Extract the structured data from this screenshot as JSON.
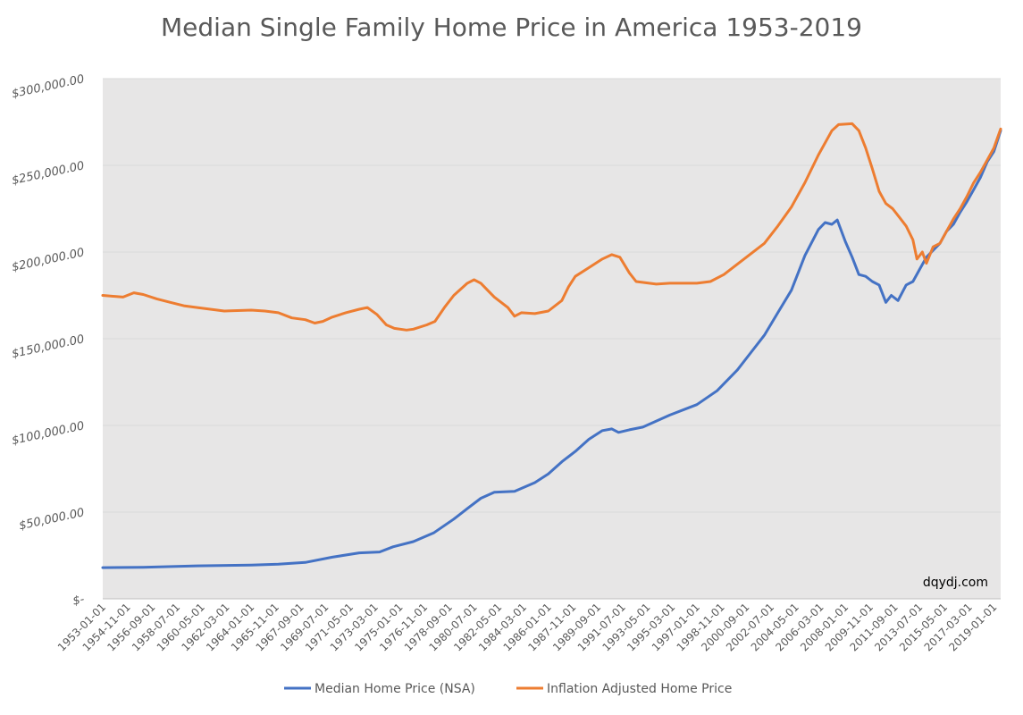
{
  "chart_data": {
    "type": "line",
    "title": "Median Single Family Home Price in America 1953-2019",
    "xlabel": "",
    "ylabel": "",
    "ylim": [
      0,
      300000
    ],
    "y_ticks": [
      0,
      50000,
      100000,
      150000,
      200000,
      250000,
      300000
    ],
    "y_tick_labels": [
      "$-",
      "$50,000.00",
      "$100,000.00",
      "$150,000.00",
      "$200,000.00",
      "$250,000.00",
      "$300,000.00"
    ],
    "x_range": [
      1953.0,
      2019.5
    ],
    "x_tick_labels": [
      "1953-01-01",
      "1954-11-01",
      "1956-09-01",
      "1958-07-01",
      "1960-05-01",
      "1962-03-01",
      "1964-01-01",
      "1965-11-01",
      "1967-09-01",
      "1969-07-01",
      "1971-05-01",
      "1973-03-01",
      "1975-01-01",
      "1976-11-01",
      "1978-09-01",
      "1980-07-01",
      "1982-05-01",
      "1984-03-01",
      "1986-01-01",
      "1987-11-01",
      "1989-09-01",
      "1991-07-01",
      "1993-05-01",
      "1995-03-01",
      "1997-01-01",
      "1998-11-01",
      "2000-09-01",
      "2002-07-01",
      "2004-05-01",
      "2006-03-01",
      "2008-01-01",
      "2009-11-01",
      "2011-09-01",
      "2013-07-01",
      "2015-05-01",
      "2017-03-01",
      "2019-01-01"
    ],
    "grid": true,
    "legend_position": "bottom",
    "annotation": "dqydj.com",
    "series": [
      {
        "name": "Median Home Price (NSA)",
        "color": "#4472C4",
        "points": [
          [
            1953.0,
            18000
          ],
          [
            1956.0,
            18200
          ],
          [
            1960.0,
            19000
          ],
          [
            1964.0,
            19500
          ],
          [
            1966.0,
            20000
          ],
          [
            1968.0,
            21000
          ],
          [
            1970.0,
            24000
          ],
          [
            1972.0,
            26500
          ],
          [
            1973.5,
            27000
          ],
          [
            1974.5,
            30000
          ],
          [
            1976.0,
            33000
          ],
          [
            1977.5,
            38000
          ],
          [
            1979.0,
            46000
          ],
          [
            1980.0,
            52000
          ],
          [
            1981.0,
            58000
          ],
          [
            1982.0,
            61500
          ],
          [
            1983.5,
            62000
          ],
          [
            1985.0,
            67000
          ],
          [
            1986.0,
            72000
          ],
          [
            1987.0,
            79000
          ],
          [
            1988.0,
            85000
          ],
          [
            1989.0,
            92000
          ],
          [
            1990.0,
            97000
          ],
          [
            1990.7,
            98000
          ],
          [
            1991.2,
            96000
          ],
          [
            1992.0,
            97500
          ],
          [
            1993.0,
            99000
          ],
          [
            1995.0,
            106000
          ],
          [
            1997.0,
            112000
          ],
          [
            1998.5,
            120000
          ],
          [
            2000.0,
            132000
          ],
          [
            2001.0,
            142000
          ],
          [
            2002.0,
            152000
          ],
          [
            2003.0,
            165000
          ],
          [
            2004.0,
            178000
          ],
          [
            2005.0,
            198000
          ],
          [
            2006.0,
            213000
          ],
          [
            2006.5,
            217000
          ],
          [
            2007.0,
            216000
          ],
          [
            2007.4,
            218500
          ],
          [
            2008.0,
            206000
          ],
          [
            2008.5,
            197000
          ],
          [
            2009.0,
            187000
          ],
          [
            2009.5,
            186000
          ],
          [
            2010.0,
            183000
          ],
          [
            2010.5,
            181000
          ],
          [
            2011.0,
            171000
          ],
          [
            2011.4,
            175000
          ],
          [
            2011.9,
            172000
          ],
          [
            2012.5,
            181000
          ],
          [
            2013.0,
            183000
          ],
          [
            2013.5,
            190000
          ],
          [
            2014.0,
            197000
          ],
          [
            2014.5,
            201000
          ],
          [
            2015.0,
            205000
          ],
          [
            2015.5,
            212000
          ],
          [
            2016.0,
            216000
          ],
          [
            2016.5,
            223000
          ],
          [
            2017.0,
            229000
          ],
          [
            2017.5,
            236000
          ],
          [
            2018.0,
            243000
          ],
          [
            2018.5,
            252000
          ],
          [
            2019.0,
            258000
          ],
          [
            2019.5,
            270000
          ]
        ]
      },
      {
        "name": "Inflation Adjusted Home Price",
        "color": "#ED7D31",
        "points": [
          [
            1953.0,
            175000
          ],
          [
            1954.5,
            174000
          ],
          [
            1955.3,
            176500
          ],
          [
            1956.0,
            175500
          ],
          [
            1957.0,
            173000
          ],
          [
            1958.0,
            171000
          ],
          [
            1959.0,
            169000
          ],
          [
            1960.0,
            168000
          ],
          [
            1962.0,
            166000
          ],
          [
            1964.0,
            166500
          ],
          [
            1965.0,
            166000
          ],
          [
            1966.0,
            165000
          ],
          [
            1967.0,
            162000
          ],
          [
            1968.0,
            161000
          ],
          [
            1968.7,
            159000
          ],
          [
            1969.3,
            160000
          ],
          [
            1970.0,
            162500
          ],
          [
            1971.0,
            165000
          ],
          [
            1972.0,
            167000
          ],
          [
            1972.6,
            168000
          ],
          [
            1973.3,
            164000
          ],
          [
            1974.0,
            158000
          ],
          [
            1974.6,
            156000
          ],
          [
            1975.5,
            155000
          ],
          [
            1976.0,
            155500
          ],
          [
            1977.0,
            158000
          ],
          [
            1977.6,
            160000
          ],
          [
            1978.3,
            168000
          ],
          [
            1979.0,
            175000
          ],
          [
            1980.0,
            182000
          ],
          [
            1980.5,
            184000
          ],
          [
            1981.0,
            182000
          ],
          [
            1981.5,
            178000
          ],
          [
            1982.0,
            174000
          ],
          [
            1983.0,
            168000
          ],
          [
            1983.5,
            163000
          ],
          [
            1984.0,
            165000
          ],
          [
            1985.0,
            164500
          ],
          [
            1986.0,
            166000
          ],
          [
            1987.0,
            172000
          ],
          [
            1987.5,
            180000
          ],
          [
            1988.0,
            186000
          ],
          [
            1989.0,
            191000
          ],
          [
            1990.0,
            196000
          ],
          [
            1990.7,
            198500
          ],
          [
            1991.3,
            197000
          ],
          [
            1992.0,
            188000
          ],
          [
            1992.5,
            183000
          ],
          [
            1994.0,
            181500
          ],
          [
            1995.0,
            182000
          ],
          [
            1997.0,
            182000
          ],
          [
            1998.0,
            183000
          ],
          [
            1999.0,
            187000
          ],
          [
            2000.0,
            193000
          ],
          [
            2001.0,
            199000
          ],
          [
            2002.0,
            205000
          ],
          [
            2003.0,
            215000
          ],
          [
            2004.0,
            226000
          ],
          [
            2005.0,
            240000
          ],
          [
            2006.0,
            256000
          ],
          [
            2007.0,
            270000
          ],
          [
            2007.5,
            273500
          ],
          [
            2008.5,
            274000
          ],
          [
            2009.0,
            270000
          ],
          [
            2009.5,
            260000
          ],
          [
            2010.0,
            248000
          ],
          [
            2010.5,
            235000
          ],
          [
            2011.0,
            228000
          ],
          [
            2011.5,
            225000
          ],
          [
            2012.0,
            220000
          ],
          [
            2012.5,
            215000
          ],
          [
            2013.0,
            207000
          ],
          [
            2013.3,
            196000
          ],
          [
            2013.7,
            200000
          ],
          [
            2014.0,
            193500
          ],
          [
            2014.5,
            203000
          ],
          [
            2015.0,
            205000
          ],
          [
            2015.5,
            212000
          ],
          [
            2016.0,
            219000
          ],
          [
            2016.5,
            225000
          ],
          [
            2017.0,
            232000
          ],
          [
            2017.5,
            240000
          ],
          [
            2018.0,
            246000
          ],
          [
            2018.5,
            253000
          ],
          [
            2019.0,
            260000
          ],
          [
            2019.5,
            271000
          ]
        ]
      }
    ]
  }
}
